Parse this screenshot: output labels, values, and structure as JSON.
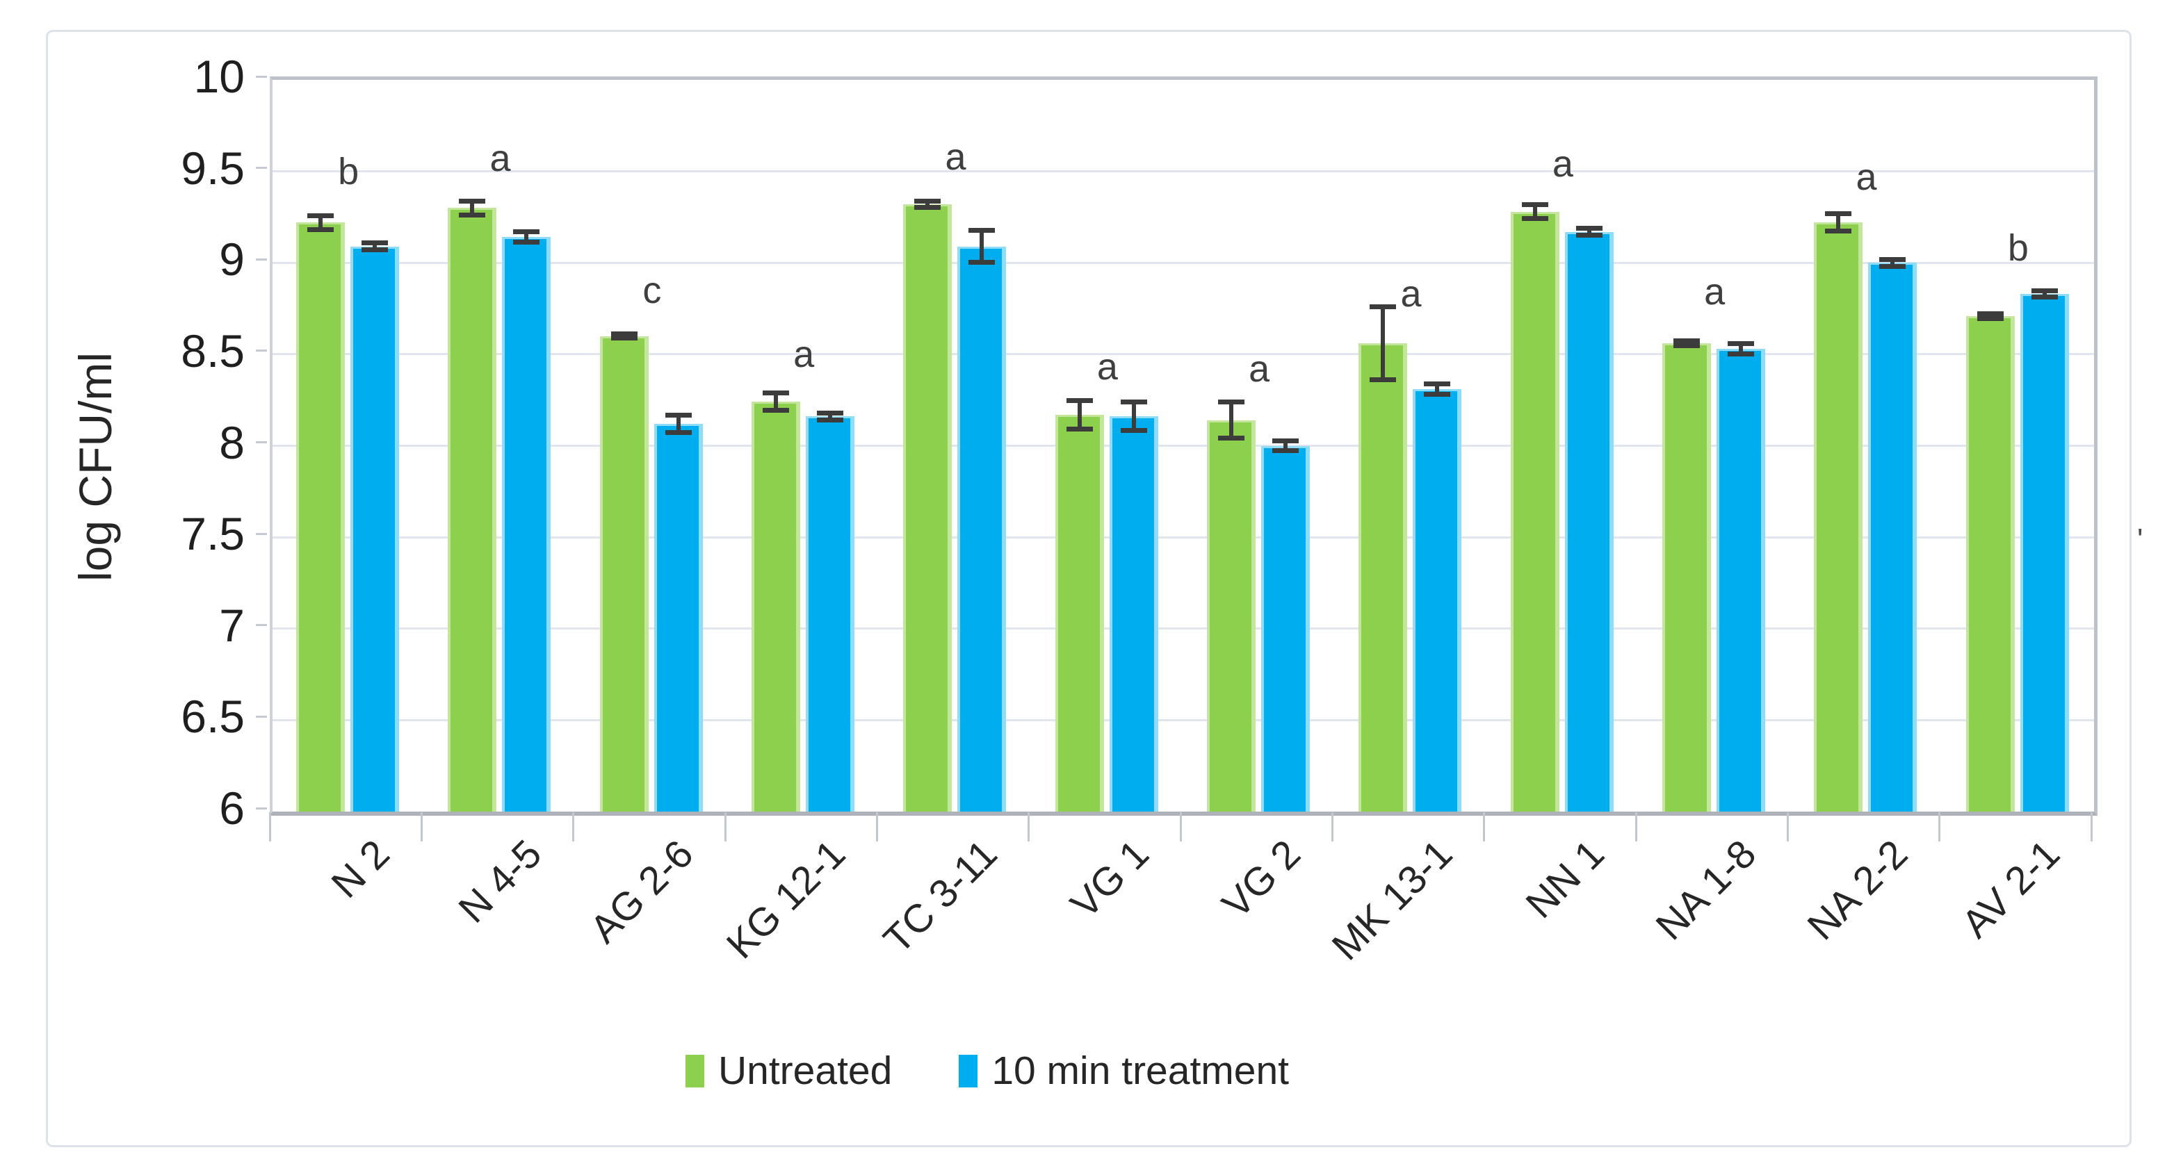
{
  "chart_data": {
    "type": "bar",
    "title": "",
    "xlabel": "",
    "ylabel": "log CFU/ml",
    "ylim": [
      6,
      10
    ],
    "ytick_step": 0.5,
    "yticks": [
      "10",
      "9.5",
      "9",
      "8.5",
      "8",
      "7.5",
      "7",
      "6.5",
      "6"
    ],
    "grid": true,
    "legend_position": "bottom-center",
    "categories": [
      "N 2",
      "N 4-5",
      "AG 2-6",
      "KG 12-1",
      "TC 3-11",
      "VG 1",
      "VG 2",
      "MK 13-1",
      "NN 1",
      "NA 1-8",
      "NA 2-2",
      "AV 2-1"
    ],
    "series": [
      {
        "name": "Untreated",
        "color": "#8CD04E",
        "edge_color": "#c3e59c",
        "values": [
          9.22,
          9.3,
          8.6,
          8.24,
          9.32,
          8.17,
          8.14,
          8.56,
          9.28,
          8.56,
          9.22,
          8.71
        ],
        "errors": [
          0.04,
          0.04,
          0.015,
          0.05,
          0.02,
          0.08,
          0.1,
          0.2,
          0.04,
          0.015,
          0.05,
          0.015
        ]
      },
      {
        "name": "10 min treatment",
        "color": "#00AEEF",
        "edge_color": "#8fdcf9",
        "values": [
          9.09,
          9.14,
          8.12,
          8.16,
          9.09,
          8.16,
          8.0,
          8.31,
          9.17,
          8.53,
          9.0,
          8.83
        ],
        "errors": [
          0.02,
          0.03,
          0.05,
          0.02,
          0.09,
          0.08,
          0.03,
          0.03,
          0.02,
          0.03,
          0.02,
          0.02
        ]
      }
    ],
    "sig_letters": [
      {
        "label": "b",
        "y": 9.5
      },
      {
        "label": "a",
        "y": 9.57
      },
      {
        "label": "c",
        "y": 8.85
      },
      {
        "label": "a",
        "y": 8.5
      },
      {
        "label": "a",
        "y": 9.58
      },
      {
        "label": "a",
        "y": 8.43
      },
      {
        "label": "a",
        "y": 8.42
      },
      {
        "label": "a",
        "y": 8.83
      },
      {
        "label": "a",
        "y": 9.54
      },
      {
        "label": "a",
        "y": 8.84
      },
      {
        "label": "a",
        "y": 9.47
      },
      {
        "label": "b",
        "y": 9.08
      }
    ]
  },
  "misc": {
    "stray_mark": "'",
    "error_bar_color": "#3c3c3c",
    "gridline_color": "#e1e6ee"
  }
}
